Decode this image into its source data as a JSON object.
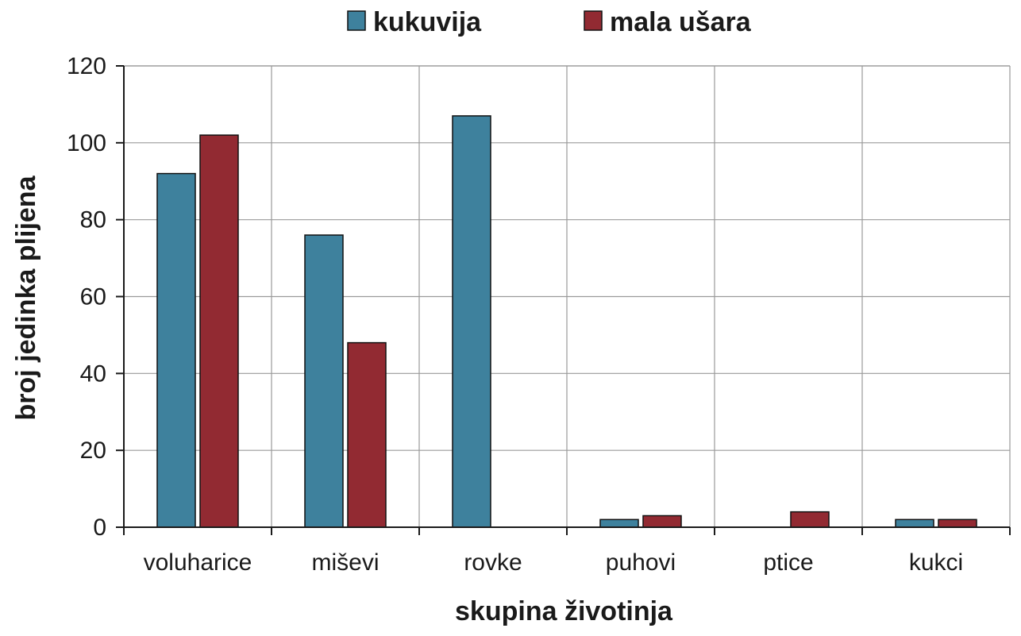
{
  "chart_data": {
    "type": "bar",
    "title": "",
    "xlabel": "skupina životinja",
    "ylabel": "broj jedinka plijena",
    "categories": [
      "voluharice",
      "miševi",
      "rovke",
      "puhovi",
      "ptice",
      "kukci"
    ],
    "series": [
      {
        "name": "kukuvija",
        "color": "#3e819d",
        "values": [
          92,
          76,
          107,
          2,
          0,
          2
        ]
      },
      {
        "name": "mala ušara",
        "color": "#922a32",
        "values": [
          102,
          48,
          0,
          3,
          4,
          2
        ]
      }
    ],
    "ylim": [
      0,
      120
    ],
    "yticks": [
      0,
      20,
      40,
      60,
      80,
      100,
      120
    ],
    "grid": true,
    "legend_position": "top"
  }
}
